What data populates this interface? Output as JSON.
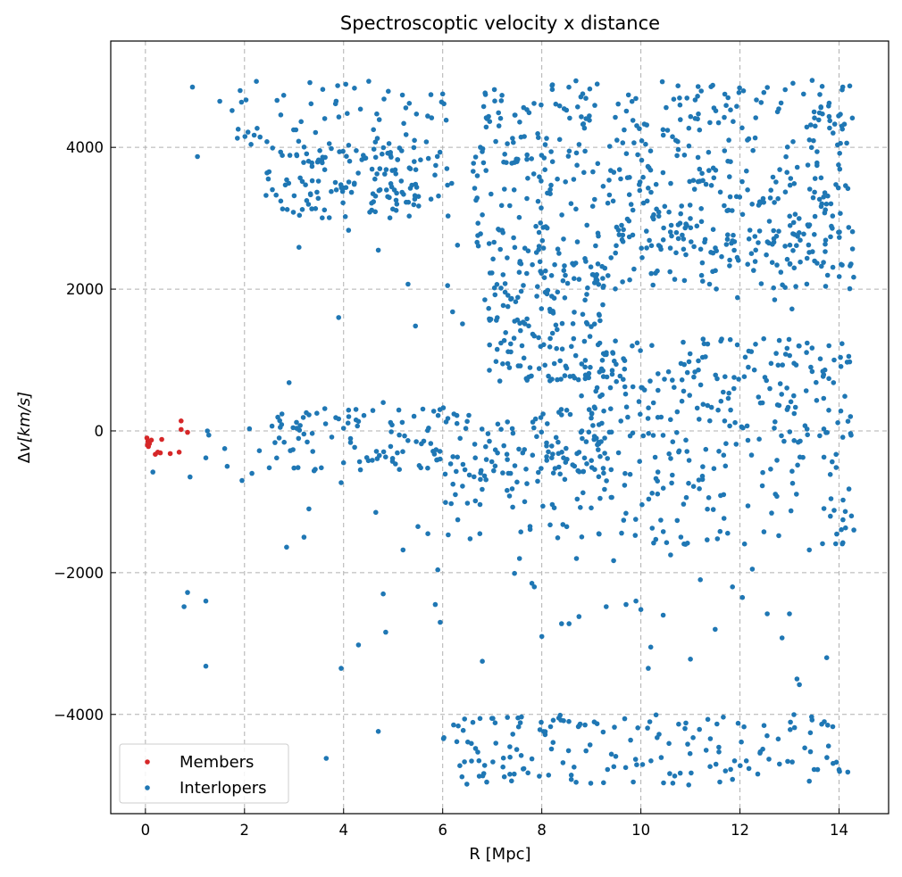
{
  "chart_data": {
    "type": "scatter",
    "title": "Spectroscoptic velocity x distance",
    "xlabel": "R [Mpc]",
    "ylabel_prefix": "Δ",
    "ylabel_main": "v[km/s]",
    "xlim": [
      -0.7,
      15.0
    ],
    "ylim": [
      -5400,
      5500
    ],
    "x_ticks": [
      0,
      2,
      4,
      6,
      8,
      10,
      12,
      14
    ],
    "x_tick_labels": [
      "0",
      "2",
      "4",
      "6",
      "8",
      "10",
      "12",
      "14"
    ],
    "y_ticks": [
      -4000,
      -2000,
      0,
      2000,
      4000
    ],
    "y_tick_labels": [
      "−4000",
      "−2000",
      "0",
      "2000",
      "4000"
    ],
    "grid": true,
    "legend_position": "lower-left",
    "series": [
      {
        "name": "Members",
        "color": "#d62728",
        "points": [
          [
            0.03,
            -100
          ],
          [
            0.05,
            -150
          ],
          [
            0.04,
            -200
          ],
          [
            0.06,
            -220
          ],
          [
            0.08,
            -180
          ],
          [
            0.12,
            -130
          ],
          [
            0.2,
            -330
          ],
          [
            0.25,
            -300
          ],
          [
            0.3,
            -310
          ],
          [
            0.33,
            -120
          ],
          [
            0.5,
            -320
          ],
          [
            0.68,
            -300
          ],
          [
            0.72,
            140
          ],
          [
            0.72,
            20
          ],
          [
            0.85,
            -20
          ]
        ]
      },
      {
        "name": "Interlopers",
        "color": "#1f77b4",
        "points": [
          [
            0.15,
            -580
          ],
          [
            0.9,
            -650
          ],
          [
            0.95,
            4850
          ],
          [
            1.05,
            3870
          ],
          [
            1.25,
            0
          ],
          [
            1.28,
            -60
          ],
          [
            1.22,
            -380
          ],
          [
            1.22,
            -2400
          ],
          [
            1.22,
            -3320
          ],
          [
            0.78,
            -2480
          ],
          [
            0.85,
            -2280
          ],
          [
            1.5,
            4650
          ],
          [
            1.75,
            4520
          ],
          [
            1.65,
            -500
          ],
          [
            1.6,
            -250
          ],
          [
            1.95,
            -700
          ],
          [
            2.1,
            30
          ],
          [
            2.15,
            -600
          ],
          [
            2.3,
            -280
          ],
          [
            2.5,
            -520
          ],
          [
            2.7,
            -100
          ],
          [
            2.8,
            -160
          ],
          [
            2.85,
            -1640
          ],
          [
            2.9,
            680
          ],
          [
            3.05,
            120
          ],
          [
            3.1,
            2590
          ],
          [
            3.2,
            -1500
          ],
          [
            3.3,
            -1100
          ],
          [
            3.55,
            -520
          ],
          [
            3.65,
            -4620
          ],
          [
            3.9,
            1600
          ],
          [
            3.95,
            -3350
          ],
          [
            3.95,
            -730
          ],
          [
            4.0,
            -450
          ],
          [
            4.1,
            2830
          ],
          [
            4.3,
            -3020
          ],
          [
            4.5,
            -420
          ],
          [
            4.65,
            -1150
          ],
          [
            4.7,
            2550
          ],
          [
            4.8,
            -2300
          ],
          [
            4.85,
            -2840
          ],
          [
            4.7,
            -4240
          ],
          [
            4.8,
            400
          ],
          [
            5.2,
            -1680
          ],
          [
            5.3,
            2070
          ],
          [
            5.45,
            1480
          ],
          [
            5.5,
            -1350
          ],
          [
            5.7,
            -1450
          ],
          [
            5.85,
            -2450
          ],
          [
            5.9,
            -1960
          ],
          [
            5.95,
            -2700
          ],
          [
            6.05,
            -610
          ],
          [
            6.1,
            2050
          ],
          [
            6.3,
            2620
          ],
          [
            6.4,
            1510
          ],
          [
            6.4,
            -780
          ],
          [
            6.5,
            -1020
          ],
          [
            6.75,
            -1450
          ],
          [
            6.8,
            -3250
          ],
          [
            6.85,
            1850
          ],
          [
            6.95,
            1560
          ],
          [
            7.1,
            1150
          ],
          [
            7.3,
            -840
          ],
          [
            7.45,
            -2010
          ],
          [
            7.55,
            -1800
          ],
          [
            7.8,
            -2150
          ],
          [
            7.85,
            -2200
          ],
          [
            8.0,
            -2900
          ],
          [
            8.2,
            1900
          ],
          [
            8.4,
            -2720
          ],
          [
            8.55,
            -2720
          ],
          [
            8.7,
            -1800
          ],
          [
            8.75,
            -2620
          ],
          [
            9.15,
            -1450
          ],
          [
            9.3,
            -2480
          ],
          [
            9.45,
            -1830
          ],
          [
            9.7,
            -2450
          ],
          [
            9.9,
            -2400
          ],
          [
            10.0,
            -2520
          ],
          [
            10.15,
            -3350
          ],
          [
            10.2,
            -3050
          ],
          [
            10.45,
            -2600
          ],
          [
            10.6,
            -1750
          ],
          [
            10.9,
            -1600
          ],
          [
            11.0,
            -3220
          ],
          [
            11.2,
            -2100
          ],
          [
            11.5,
            -2800
          ],
          [
            11.85,
            -2200
          ],
          [
            12.05,
            -2350
          ],
          [
            12.25,
            -1950
          ],
          [
            12.55,
            -2580
          ],
          [
            12.85,
            -2920
          ],
          [
            13.0,
            -2580
          ],
          [
            13.15,
            -3500
          ],
          [
            13.2,
            -3580
          ],
          [
            13.4,
            -1680
          ],
          [
            13.75,
            -3200
          ],
          [
            13.9,
            1000
          ],
          [
            14.0,
            -4780
          ],
          [
            14.2,
            -820
          ],
          [
            14.25,
            -1200
          ],
          [
            13.9,
            -1120
          ],
          [
            11.95,
            1880
          ],
          [
            12.7,
            1850
          ],
          [
            13.05,
            1720
          ],
          [
            6.7,
            3600
          ],
          [
            6.2,
            1680
          ],
          [
            7.9,
            1900
          ]
        ],
        "clusters": [
          {
            "x": [
              2.4,
              6.2
            ],
            "y": [
              3000,
              4000
            ],
            "n": 150
          },
          {
            "x": [
              1.8,
              6.1
            ],
            "y": [
              4000,
              4950
            ],
            "n": 60
          },
          {
            "x": [
              6.6,
              14.3
            ],
            "y": [
              2500,
              4950
            ],
            "n": 460
          },
          {
            "x": [
              8.9,
              14.3
            ],
            "y": [
              2000,
              3000
            ],
            "n": 110
          },
          {
            "x": [
              6.9,
              9.3
            ],
            "y": [
              700,
              2450
            ],
            "n": 160
          },
          {
            "x": [
              8.8,
              14.3
            ],
            "y": [
              -200,
              1300
            ],
            "n": 220
          },
          {
            "x": [
              2.5,
              9.3
            ],
            "y": [
              -650,
              330
            ],
            "n": 190
          },
          {
            "x": [
              6.0,
              14.3
            ],
            "y": [
              -1600,
              -250
            ],
            "n": 160
          },
          {
            "x": [
              6.0,
              14.2
            ],
            "y": [
              -5000,
              -4000
            ],
            "n": 170
          }
        ]
      }
    ]
  }
}
